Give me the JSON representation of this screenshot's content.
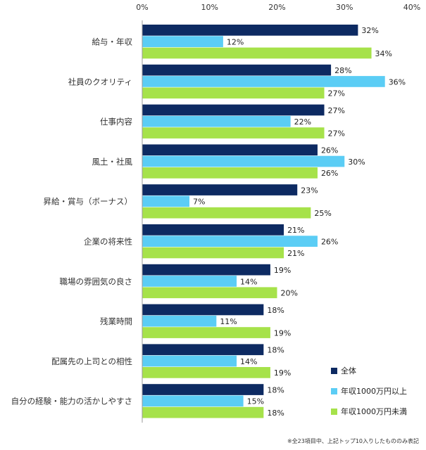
{
  "chart_data": {
    "type": "bar",
    "orientation": "horizontal",
    "categories": [
      "給与・年収",
      "社員のクオリティ",
      "仕事内容",
      "風土・社風",
      "昇給・賞与（ボーナス）",
      "企業の将来性",
      "職場の雰囲気の良さ",
      "残業時間",
      "配属先の上司との相性",
      "自分の経験・能力の活かしやすさ"
    ],
    "series": [
      {
        "name": "全体",
        "color": "#0d2a62",
        "values": [
          32,
          28,
          27,
          26,
          23,
          21,
          19,
          18,
          18,
          18
        ]
      },
      {
        "name": "年収1000万円以上",
        "color": "#5bcdf5",
        "values": [
          12,
          36,
          22,
          30,
          7,
          26,
          14,
          11,
          14,
          15
        ]
      },
      {
        "name": "年収1000万円未満",
        "color": "#a6e24a",
        "values": [
          34,
          27,
          27,
          26,
          25,
          21,
          20,
          19,
          19,
          18
        ]
      }
    ],
    "x_ticks": [
      "0%",
      "10%",
      "20%",
      "30%",
      "40%"
    ],
    "xlim": [
      0,
      40
    ],
    "value_suffix": "%",
    "legend_position": "bottom-right",
    "grid": false
  },
  "footnote": "※全23項目中、上記トップ10入りしたもののみ表記"
}
